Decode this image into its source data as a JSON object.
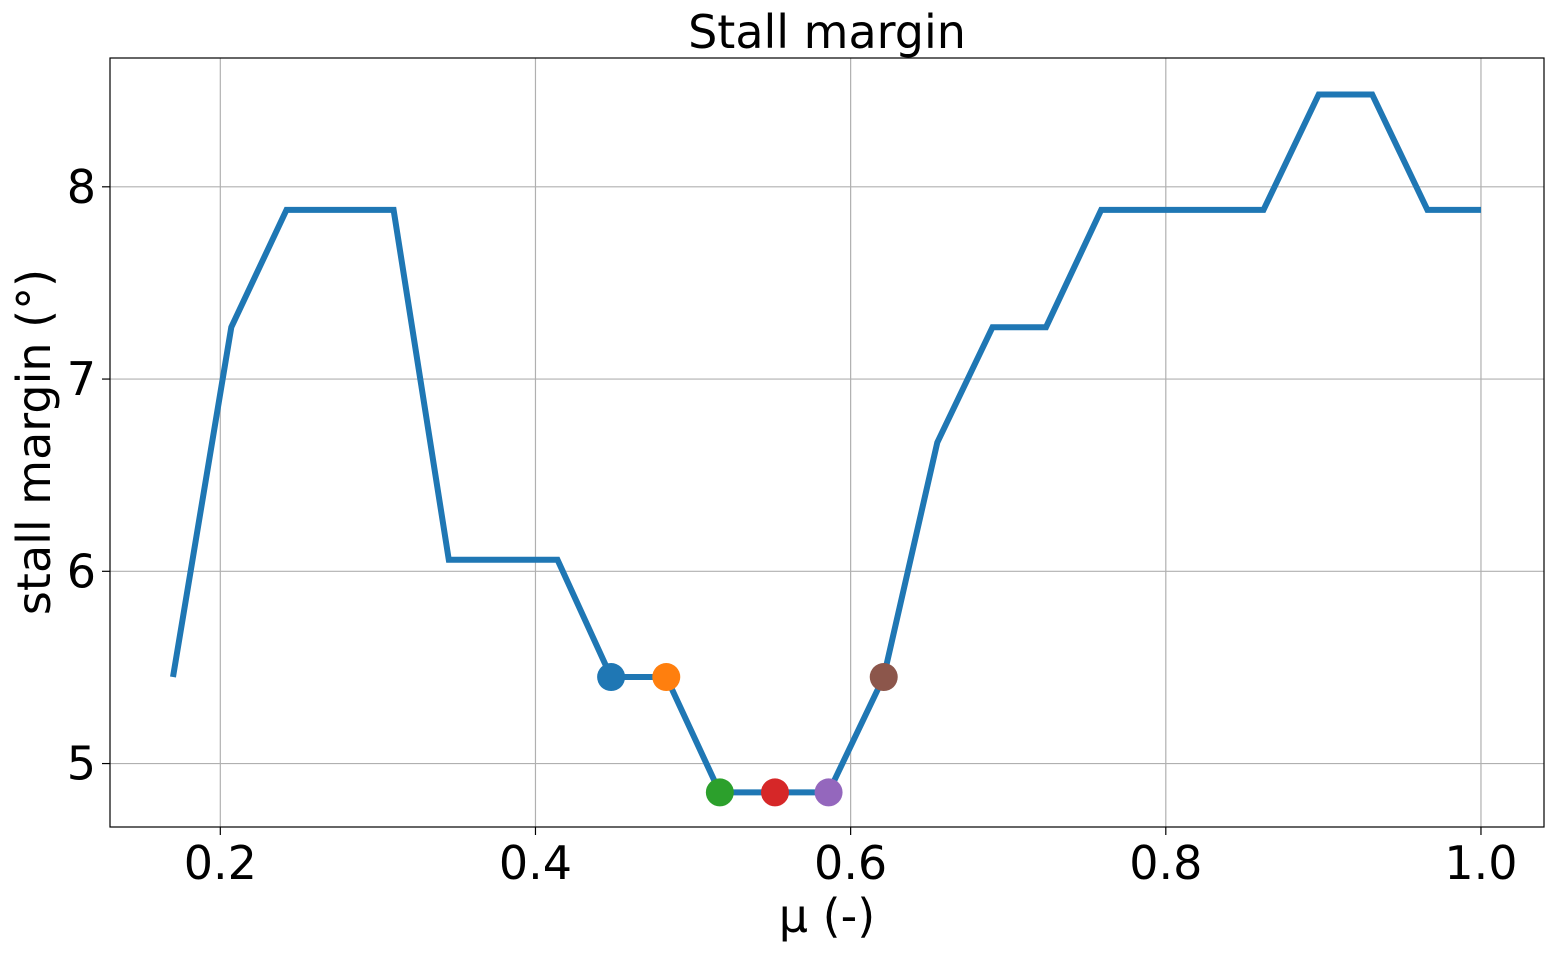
{
  "chart_data": {
    "type": "line",
    "title": "Stall margin",
    "xlabel": "μ (-)",
    "ylabel": "stall margin (°)",
    "xlim": [
      0.13,
      1.04
    ],
    "ylim": [
      4.67,
      8.67
    ],
    "xticks": [
      0.2,
      0.4,
      0.6,
      0.8,
      1.0
    ],
    "xtick_labels": [
      "0.2",
      "0.4",
      "0.6",
      "0.8",
      "1.0"
    ],
    "yticks": [
      5,
      6,
      7,
      8
    ],
    "ytick_labels": [
      "5",
      "6",
      "7",
      "8"
    ],
    "grid": true,
    "series": [
      {
        "color": "#1f77b4",
        "x": [
          0.17,
          0.207,
          0.242,
          0.276,
          0.31,
          0.345,
          0.379,
          0.414,
          0.448,
          0.483,
          0.517,
          0.552,
          0.586,
          0.621,
          0.655,
          0.69,
          0.724,
          0.759,
          0.793,
          0.828,
          0.862,
          0.897,
          0.931,
          0.966,
          1.0
        ],
        "y": [
          5.45,
          7.27,
          7.88,
          7.88,
          7.88,
          6.06,
          6.06,
          6.06,
          5.45,
          5.45,
          4.85,
          4.85,
          4.85,
          5.45,
          6.67,
          7.27,
          7.27,
          7.88,
          7.88,
          7.88,
          7.88,
          8.48,
          8.48,
          7.88,
          7.88
        ]
      }
    ],
    "markers": [
      {
        "x": 0.448,
        "y": 5.45,
        "color": "#1f77b4"
      },
      {
        "x": 0.483,
        "y": 5.45,
        "color": "#ff7f0e"
      },
      {
        "x": 0.517,
        "y": 4.85,
        "color": "#2ca02c"
      },
      {
        "x": 0.552,
        "y": 4.85,
        "color": "#d62728"
      },
      {
        "x": 0.586,
        "y": 4.85,
        "color": "#9467bd"
      },
      {
        "x": 0.621,
        "y": 5.45,
        "color": "#8c564b"
      }
    ]
  }
}
